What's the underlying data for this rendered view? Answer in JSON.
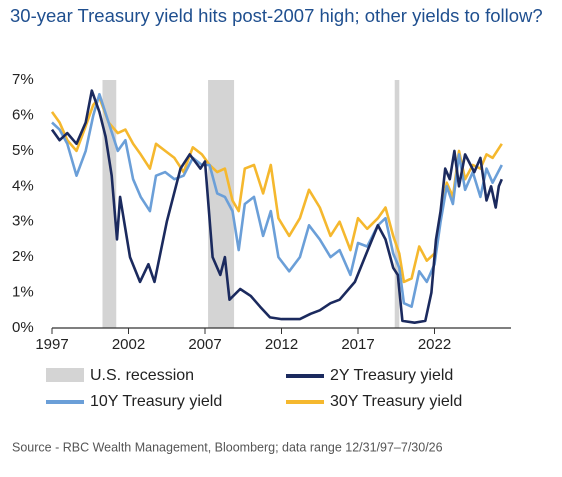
{
  "chart_data": {
    "type": "line",
    "title": "30-year Treasury yield hits post-2007 high; other yields to follow?",
    "source": "Source - RBC Wealth Management, Bloomberg; data range 12/31/97–7/30/26",
    "xlim": [
      1997,
      2027
    ],
    "xticks": [
      1997,
      2002,
      2007,
      2012,
      2017,
      2022
    ],
    "ylim": [
      0,
      7
    ],
    "yticks": [
      {
        "value": 0,
        "label": "0%"
      },
      {
        "value": 1,
        "label": "1%"
      },
      {
        "value": 2,
        "label": "2%"
      },
      {
        "value": 3,
        "label": "3%"
      },
      {
        "value": 4,
        "label": "4%"
      },
      {
        "value": 5,
        "label": "5%"
      },
      {
        "value": 6,
        "label": "6%"
      },
      {
        "value": 7,
        "label": "7%"
      }
    ],
    "grid": false,
    "shaded": {
      "name": "U.S. recession",
      "color": "#d4d4d4",
      "ranges": [
        [
          2000.3,
          2001.2
        ],
        [
          2007.2,
          2008.9
        ],
        [
          2019.4,
          2019.7
        ]
      ]
    },
    "series": [
      {
        "name": "2Y Treasury yield",
        "color": "#1b2a5e",
        "x": [
          1997,
          1997.5,
          1998,
          1998.6,
          1999.2,
          1999.6,
          2000.1,
          2000.5,
          2000.9,
          2001.25,
          2001.45,
          2002.1,
          2002.75,
          2003.3,
          2003.7,
          2004.5,
          2005.4,
          2006,
          2006.7,
          2007,
          2007.5,
          2008,
          2008.3,
          2008.6,
          2009.3,
          2010,
          2010.6,
          2011.25,
          2012,
          2013.2,
          2013.9,
          2014.5,
          2015.2,
          2015.8,
          2016.8,
          2017.45,
          2018.3,
          2018.8,
          2019.3,
          2019.6,
          2019.9,
          2020.7,
          2021.4,
          2021.8,
          2022.1,
          2022.4,
          2022.7,
          2023,
          2023.3,
          2023.6,
          2024,
          2024.6,
          2025,
          2025.4,
          2025.7,
          2026,
          2026.2,
          2026.4
        ],
        "values": [
          5.6,
          5.3,
          5.5,
          5.2,
          5.8,
          6.7,
          6.1,
          5.4,
          4.3,
          2.5,
          3.7,
          2.0,
          1.3,
          1.8,
          1.3,
          3.0,
          4.5,
          4.9,
          4.5,
          4.7,
          2.0,
          1.5,
          2.0,
          0.8,
          1.1,
          0.9,
          0.6,
          0.3,
          0.25,
          0.25,
          0.4,
          0.5,
          0.7,
          0.8,
          1.3,
          2.0,
          2.9,
          2.5,
          1.7,
          1.5,
          0.2,
          0.15,
          0.2,
          1.0,
          2.5,
          3.3,
          4.5,
          4.2,
          5.0,
          4.0,
          4.9,
          4.4,
          4.8,
          3.6,
          4.0,
          3.4,
          4.0,
          4.2
        ]
      },
      {
        "name": "10Y Treasury yield",
        "color": "#6b9fd8",
        "x": [
          1997,
          1997.5,
          1998,
          1998.6,
          1999.2,
          1999.7,
          2000.1,
          2000.7,
          2001.3,
          2001.8,
          2002.3,
          2002.8,
          2003.4,
          2003.8,
          2004.4,
          2005,
          2005.6,
          2006.2,
          2006.8,
          2007.3,
          2007.8,
          2008.3,
          2008.8,
          2009.2,
          2009.6,
          2010.2,
          2010.8,
          2011.3,
          2011.8,
          2012.5,
          2013.2,
          2013.8,
          2014.5,
          2015.2,
          2015.8,
          2016.5,
          2017,
          2017.6,
          2018.3,
          2018.8,
          2019.3,
          2019.7,
          2020,
          2020.5,
          2021,
          2021.5,
          2022,
          2022.4,
          2022.8,
          2023.2,
          2023.6,
          2024,
          2024.5,
          2025,
          2025.4,
          2025.8,
          2026.4
        ],
        "values": [
          5.8,
          5.6,
          5.2,
          4.3,
          5.0,
          6.0,
          6.6,
          5.8,
          5.0,
          5.3,
          4.2,
          3.7,
          3.3,
          4.3,
          4.4,
          4.2,
          4.3,
          4.8,
          4.6,
          4.6,
          3.8,
          3.7,
          3.3,
          2.2,
          3.5,
          3.7,
          2.6,
          3.3,
          2.0,
          1.6,
          2.0,
          2.9,
          2.5,
          2.0,
          2.2,
          1.5,
          2.4,
          2.3,
          2.9,
          3.1,
          2.1,
          1.7,
          0.7,
          0.6,
          1.6,
          1.3,
          1.8,
          3.0,
          4.0,
          3.5,
          4.9,
          3.9,
          4.4,
          3.7,
          4.5,
          4.1,
          4.6
        ]
      },
      {
        "name": "30Y Treasury yield",
        "color": "#f5b82e",
        "x": [
          1997,
          1997.5,
          1998,
          1998.6,
          1999.2,
          1999.7,
          2000.1,
          2000.7,
          2001.3,
          2001.8,
          2002.3,
          2002.8,
          2003.4,
          2003.8,
          2004.4,
          2005,
          2005.6,
          2006.2,
          2006.8,
          2007.3,
          2007.8,
          2008.3,
          2008.8,
          2009.2,
          2009.6,
          2010.2,
          2010.8,
          2011.3,
          2011.8,
          2012.5,
          2013.2,
          2013.8,
          2014.5,
          2015.2,
          2015.8,
          2016.5,
          2017,
          2017.6,
          2018.3,
          2018.8,
          2019.3,
          2019.7,
          2020,
          2020.5,
          2021,
          2021.5,
          2022,
          2022.4,
          2022.8,
          2023.2,
          2023.6,
          2024,
          2024.5,
          2025,
          2025.4,
          2025.8,
          2026.4
        ],
        "values": [
          6.1,
          5.8,
          5.3,
          5.0,
          5.7,
          6.3,
          6.5,
          5.8,
          5.5,
          5.6,
          5.2,
          4.9,
          4.5,
          5.2,
          5.0,
          4.8,
          4.4,
          5.1,
          4.9,
          4.6,
          4.4,
          4.5,
          3.6,
          3.3,
          4.5,
          4.6,
          3.8,
          4.6,
          3.1,
          2.6,
          3.1,
          3.9,
          3.4,
          2.6,
          3.0,
          2.2,
          3.1,
          2.8,
          3.1,
          3.4,
          2.6,
          2.1,
          1.3,
          1.4,
          2.3,
          1.9,
          2.1,
          3.2,
          4.1,
          3.7,
          5.0,
          4.2,
          4.6,
          4.5,
          4.9,
          4.8,
          5.2
        ]
      }
    ]
  }
}
